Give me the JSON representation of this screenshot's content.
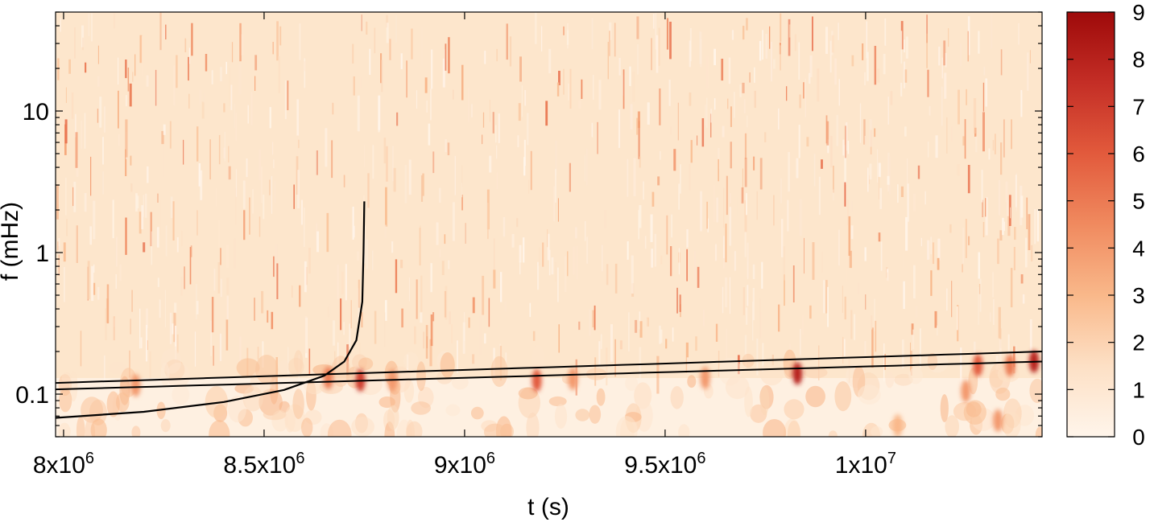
{
  "chart_data": {
    "type": "heatmap",
    "title": "",
    "xlabel": "t (s)",
    "ylabel": "f (mHz)",
    "xscale": "linear",
    "yscale": "log",
    "xlim": [
      7980000,
      10440000
    ],
    "ylim": [
      0.05,
      50
    ],
    "grid": false,
    "legend": "none",
    "x_ticks": [
      {
        "value": 8000000,
        "label": "8x10",
        "exp": "6"
      },
      {
        "value": 8500000,
        "label": "8.5x10",
        "exp": "6"
      },
      {
        "value": 9000000,
        "label": "9x10",
        "exp": "6"
      },
      {
        "value": 9500000,
        "label": "9.5x10",
        "exp": "6"
      },
      {
        "value": 10000000,
        "label": "1x10",
        "exp": "7"
      }
    ],
    "y_ticks": [
      {
        "value": 0.1,
        "label": "0.1"
      },
      {
        "value": 1,
        "label": "1"
      },
      {
        "value": 10,
        "label": "10"
      }
    ],
    "colorbar": {
      "min": 0,
      "max": 9,
      "ticks": [
        "0",
        "1",
        "2",
        "3",
        "4",
        "5",
        "6",
        "7",
        "8",
        "9"
      ],
      "colors": [
        "#fff5eb",
        "#fde0c5",
        "#f9b88a",
        "#f08a5f",
        "#e25a3c",
        "#c42e26",
        "#9e0a0a"
      ]
    },
    "hot_spots": [
      {
        "t": 8180000,
        "f": 0.115,
        "v": 4
      },
      {
        "t": 8660000,
        "f": 0.13,
        "v": 5
      },
      {
        "t": 8740000,
        "f": 0.125,
        "v": 7
      },
      {
        "t": 8820000,
        "f": 0.125,
        "v": 4
      },
      {
        "t": 9180000,
        "f": 0.125,
        "v": 6
      },
      {
        "t": 9270000,
        "f": 0.128,
        "v": 4
      },
      {
        "t": 9600000,
        "f": 0.13,
        "v": 4
      },
      {
        "t": 9830000,
        "f": 0.14,
        "v": 8
      },
      {
        "t": 10080000,
        "f": 0.06,
        "v": 3
      },
      {
        "t": 10280000,
        "f": 0.16,
        "v": 6
      },
      {
        "t": 10360000,
        "f": 0.16,
        "v": 5
      },
      {
        "t": 10420000,
        "f": 0.17,
        "v": 8
      },
      {
        "t": 10250000,
        "f": 0.105,
        "v": 4
      },
      {
        "t": 10330000,
        "f": 0.065,
        "v": 4
      }
    ],
    "curves": [
      {
        "points": [
          [
            7980000,
            0.12
          ],
          [
            10440000,
            0.2
          ]
        ]
      },
      {
        "points": [
          [
            7980000,
            0.108
          ],
          [
            10440000,
            0.17
          ]
        ]
      },
      {
        "points": [
          [
            7980000,
            0.068
          ],
          [
            8200000,
            0.075
          ],
          [
            8400000,
            0.088
          ],
          [
            8550000,
            0.107
          ],
          [
            8650000,
            0.135
          ],
          [
            8700000,
            0.17
          ],
          [
            8730000,
            0.24
          ],
          [
            8745000,
            0.45
          ],
          [
            8748000,
            1.0
          ],
          [
            8750000,
            2.3
          ]
        ]
      }
    ]
  }
}
